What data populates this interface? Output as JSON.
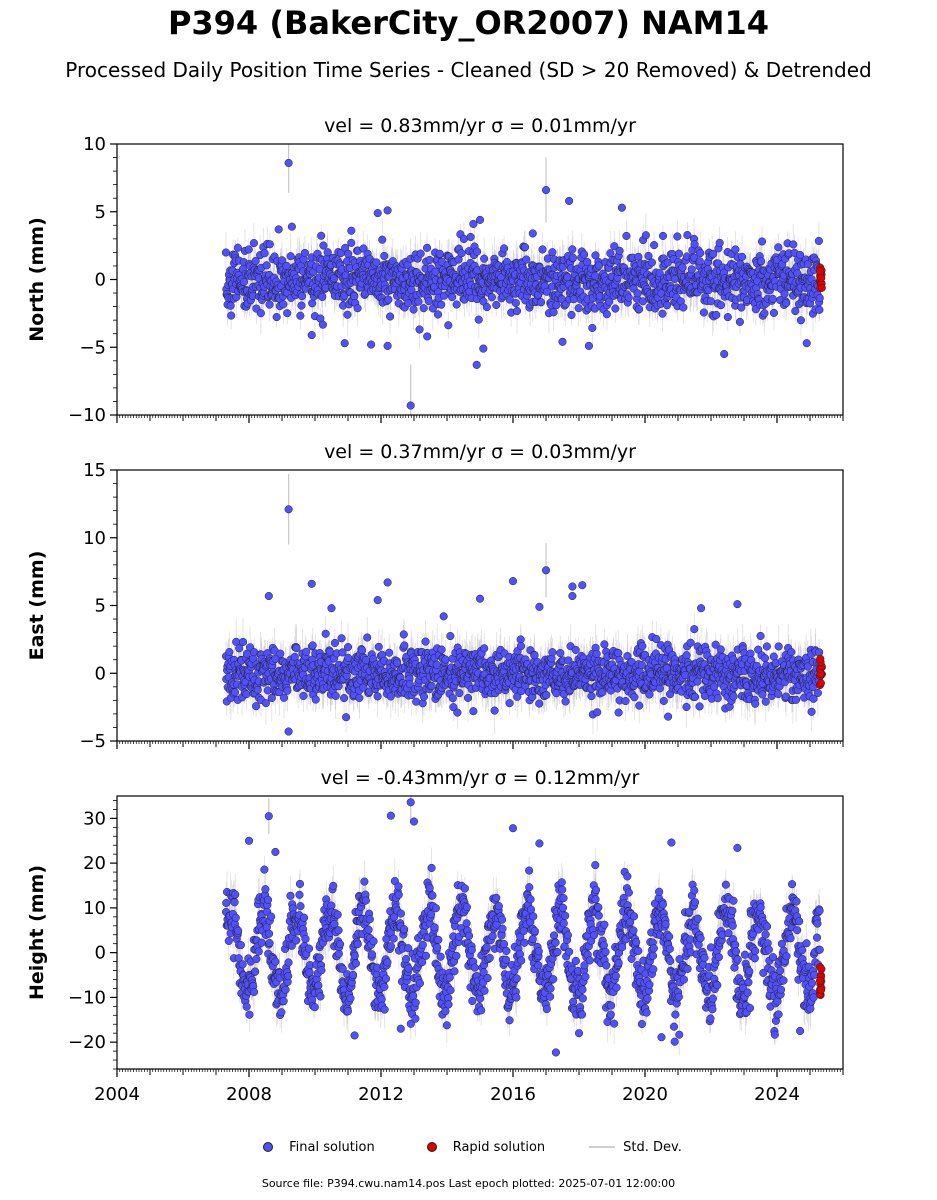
{
  "title": "P394 (BakerCity_OR2007) NAM14",
  "subtitle": "Processed Daily Position Time Series - Cleaned (SD > 20 Removed) & Detrended",
  "footer": "Source file: P394.cwu.nam14.pos  Last epoch plotted: 2025-07-01 12:00:00",
  "legend": {
    "final": "Final solution",
    "rapid": "Rapid solution",
    "sd": "Std. Dev."
  },
  "colors": {
    "final": "#5050ff",
    "rapid": "#e00000",
    "sd": "#c8c8c8",
    "marker_edge": "#222222"
  },
  "chart_data": [
    {
      "type": "scatter",
      "component": "north",
      "title": "vel = 0.83mm/yr   σ = 0.01mm/yr",
      "ylabel": "North (mm)",
      "xlim": [
        2004,
        2026
      ],
      "ylim": [
        -10,
        10
      ],
      "yticks": [
        -10,
        -5,
        0,
        5,
        10
      ],
      "xticks": [
        2004,
        2008,
        2012,
        2016,
        2020,
        2024
      ],
      "data_start": 2007.3,
      "final_end": 2025.3,
      "rapid_range": [
        2025.3,
        2025.5
      ],
      "noise_sd": 1.1,
      "typical_sigma": 1.2,
      "seasonal_amplitude": 0,
      "outliers": [
        {
          "x": 2009.2,
          "y": 8.6
        },
        {
          "x": 2009.3,
          "y": 3.9
        },
        {
          "x": 2008.9,
          "y": 3.7
        },
        {
          "x": 2011.9,
          "y": 4.9
        },
        {
          "x": 2012.2,
          "y": 5.1
        },
        {
          "x": 2011.1,
          "y": 3.6
        },
        {
          "x": 2014.8,
          "y": 4.1
        },
        {
          "x": 2015.0,
          "y": 4.4
        },
        {
          "x": 2017.0,
          "y": 6.6
        },
        {
          "x": 2017.7,
          "y": 5.8
        },
        {
          "x": 2019.3,
          "y": 5.3
        },
        {
          "x": 2016.6,
          "y": 3.4
        },
        {
          "x": 2012.9,
          "y": -9.3
        },
        {
          "x": 2014.9,
          "y": -6.3
        },
        {
          "x": 2015.1,
          "y": -5.1
        },
        {
          "x": 2022.4,
          "y": -5.5
        },
        {
          "x": 2024.9,
          "y": -4.7
        },
        {
          "x": 2010.9,
          "y": -4.7
        },
        {
          "x": 2011.7,
          "y": -4.8
        },
        {
          "x": 2012.2,
          "y": -4.9
        },
        {
          "x": 2017.5,
          "y": -4.6
        },
        {
          "x": 2018.3,
          "y": -4.9
        },
        {
          "x": 2009.9,
          "y": -4.1
        },
        {
          "x": 2013.4,
          "y": -4.2
        }
      ],
      "outlier_sigmas": [
        {
          "x": 2009.2,
          "s": 2.2
        },
        {
          "x": 2012.9,
          "s": 3.0
        },
        {
          "x": 2017.0,
          "s": 2.4
        }
      ]
    },
    {
      "type": "scatter",
      "component": "east",
      "title": "vel = 0.37mm/yr   σ = 0.03mm/yr",
      "ylabel": "East (mm)",
      "xlim": [
        2004,
        2026
      ],
      "ylim": [
        -5,
        15
      ],
      "yticks": [
        -5,
        0,
        5,
        10,
        15
      ],
      "xticks": [
        2004,
        2008,
        2012,
        2016,
        2020,
        2024
      ],
      "data_start": 2007.3,
      "final_end": 2025.3,
      "rapid_range": [
        2025.3,
        2025.5
      ],
      "noise_sd": 1.0,
      "typical_sigma": 1.3,
      "seasonal_amplitude": 0,
      "outliers": [
        {
          "x": 2009.2,
          "y": 12.1
        },
        {
          "x": 2009.2,
          "y": -4.3
        },
        {
          "x": 2008.6,
          "y": 5.7
        },
        {
          "x": 2009.9,
          "y": 6.6
        },
        {
          "x": 2012.2,
          "y": 6.7
        },
        {
          "x": 2011.9,
          "y": 5.4
        },
        {
          "x": 2016.0,
          "y": 6.8
        },
        {
          "x": 2017.0,
          "y": 7.6
        },
        {
          "x": 2017.8,
          "y": 6.4
        },
        {
          "x": 2018.1,
          "y": 6.5
        },
        {
          "x": 2015.0,
          "y": 5.5
        },
        {
          "x": 2017.8,
          "y": 5.7
        },
        {
          "x": 2021.7,
          "y": 4.8
        },
        {
          "x": 2022.8,
          "y": 5.1
        },
        {
          "x": 2016.8,
          "y": 4.9
        },
        {
          "x": 2020.7,
          "y": -3.2
        },
        {
          "x": 2019.2,
          "y": -2.9
        },
        {
          "x": 2014.8,
          "y": -2.8
        },
        {
          "x": 2010.5,
          "y": 4.8
        },
        {
          "x": 2013.9,
          "y": 4.2
        }
      ],
      "outlier_sigmas": [
        {
          "x": 2009.2,
          "s": 2.6
        },
        {
          "x": 2017.0,
          "s": 2.0
        }
      ]
    },
    {
      "type": "scatter",
      "component": "height",
      "title": "vel = -0.43mm/yr   σ = 0.12mm/yr",
      "ylabel": "Height (mm)",
      "xlim": [
        2004,
        2026
      ],
      "ylim": [
        -26,
        35
      ],
      "yticks": [
        -20,
        -10,
        0,
        10,
        20,
        30
      ],
      "xticks": [
        2004,
        2008,
        2012,
        2016,
        2020,
        2024
      ],
      "data_start": 2007.3,
      "final_end": 2025.3,
      "rapid_range": [
        2025.3,
        2025.5
      ],
      "noise_sd": 3.6,
      "typical_sigma": 3.5,
      "seasonal_amplitude": 9,
      "outliers": [
        {
          "x": 2008.6,
          "y": 30.5
        },
        {
          "x": 2012.3,
          "y": 30.6
        },
        {
          "x": 2012.9,
          "y": 33.6
        },
        {
          "x": 2013.0,
          "y": 29.3
        },
        {
          "x": 2016.0,
          "y": 27.8
        },
        {
          "x": 2008.0,
          "y": 25.0
        },
        {
          "x": 2008.8,
          "y": 22.5
        },
        {
          "x": 2016.8,
          "y": 24.4
        },
        {
          "x": 2020.8,
          "y": 24.6
        },
        {
          "x": 2022.8,
          "y": 23.4
        },
        {
          "x": 2017.3,
          "y": -22.3
        },
        {
          "x": 2020.9,
          "y": -19.9
        },
        {
          "x": 2020.5,
          "y": -18.9
        },
        {
          "x": 2011.2,
          "y": -18.5
        },
        {
          "x": 2024.7,
          "y": -17.5
        },
        {
          "x": 2018.0,
          "y": -18.0
        },
        {
          "x": 2012.6,
          "y": -17.0
        }
      ],
      "outlier_sigmas": [
        {
          "x": 2012.9,
          "s": 4.5
        },
        {
          "x": 2008.6,
          "s": 4.0
        }
      ]
    }
  ]
}
